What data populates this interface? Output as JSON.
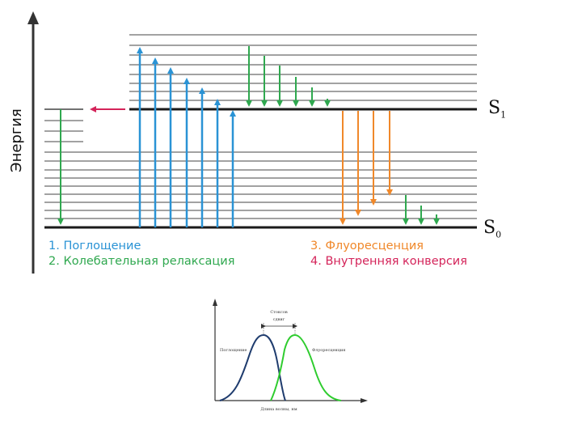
{
  "jablonski": {
    "energy_axis_label": "Энергия",
    "state_s1": {
      "letter": "S",
      "index": "1"
    },
    "state_s0": {
      "letter": "S",
      "index": "0"
    },
    "legend": {
      "absorption": "1. Поглощение",
      "vibrational_relaxation": "2. Колебательная релаксация",
      "fluorescence": "3. Флуоресценция",
      "internal_conversion": "4. Внутренняя конверсия"
    },
    "colors": {
      "absorption": "#2a93d5",
      "vibrational_relaxation": "#2fa84f",
      "fluorescence": "#f0882a",
      "internal_conversion": "#d4245a",
      "levels": "#1a1a1a"
    }
  },
  "spectrum": {
    "stokes_label_line1": "Стоксов",
    "stokes_label_line2": "сдвиг",
    "absorption_label": "Поглощение",
    "fluorescence_label": "Флуоресценция",
    "x_axis_label": "Длина волны, нм",
    "colors": {
      "absorption": "#1f3c6e",
      "fluorescence": "#2ecc2e"
    }
  }
}
